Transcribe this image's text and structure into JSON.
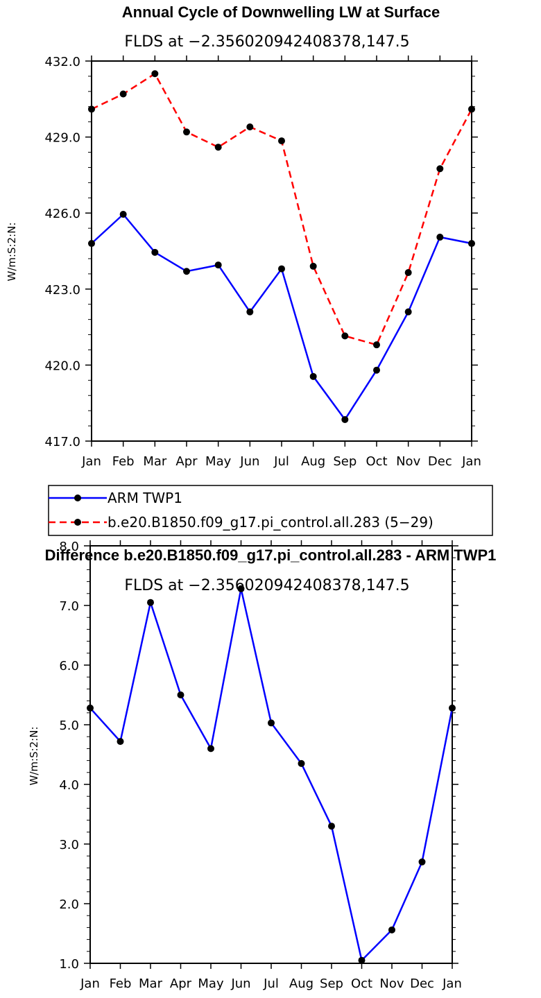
{
  "chart_data": [
    {
      "type": "line",
      "title": "Annual Cycle of Downwelling LW at Surface",
      "subtitle": "FLDS at −2.356020942408378,147.5",
      "xlabel": "",
      "ylabel": "W/m:S:2:N:",
      "categories": [
        "Jan",
        "Feb",
        "Mar",
        "Apr",
        "May",
        "Jun",
        "Jul",
        "Aug",
        "Sep",
        "Oct",
        "Nov",
        "Dec",
        "Jan"
      ],
      "ylim": [
        417.0,
        432.0
      ],
      "yticks": [
        "417.0",
        "420.0",
        "423.0",
        "426.0",
        "429.0",
        "432.0"
      ],
      "series": [
        {
          "name": "ARM TWP1",
          "color": "#0000ff",
          "dash": "solid",
          "values": [
            424.8,
            425.95,
            424.45,
            423.7,
            423.95,
            422.1,
            423.8,
            419.55,
            417.85,
            419.8,
            422.1,
            425.05,
            424.8
          ]
        },
        {
          "name": "b.e20.B1850.f09_g17.pi_control.all.283 (5−29)",
          "color": "#ff0000",
          "dash": "dashed",
          "values": [
            430.1,
            430.7,
            431.5,
            429.2,
            428.6,
            429.4,
            428.85,
            423.9,
            421.15,
            420.8,
            423.65,
            427.75,
            430.1
          ]
        }
      ]
    },
    {
      "type": "line",
      "title": "Difference b.e20.B1850.f09_g17.pi_control.all.283 - ARM TWP1",
      "subtitle": "FLDS at −2.356020942408378,147.5",
      "xlabel": "",
      "ylabel": "W/m:S:2:N:",
      "categories": [
        "Jan",
        "Feb",
        "Mar",
        "Apr",
        "May",
        "Jun",
        "Jul",
        "Aug",
        "Sep",
        "Oct",
        "Nov",
        "Dec",
        "Jan"
      ],
      "ylim": [
        1.0,
        8.0
      ],
      "yticks": [
        "1.0",
        "2.0",
        "3.0",
        "4.0",
        "5.0",
        "6.0",
        "7.0",
        "8.0"
      ],
      "series": [
        {
          "name": "Difference",
          "color": "#0000ff",
          "dash": "solid",
          "values": [
            5.28,
            4.72,
            7.05,
            5.5,
            4.6,
            7.28,
            5.03,
            4.35,
            3.3,
            1.05,
            1.56,
            2.7,
            5.28
          ]
        }
      ]
    }
  ]
}
